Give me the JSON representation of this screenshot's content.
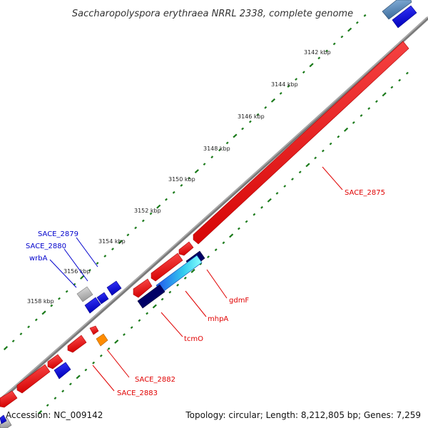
{
  "title": "Saccharopolyspora erythraea NRRL 2338, complete genome",
  "footer": {
    "accession": "Accession: NC_009142",
    "summary": "Topology: circular; Length: 8,212,805 bp; Genes: 7,259"
  },
  "ticks": [
    "3142 kbp",
    "3144 kbp",
    "3146 kbp",
    "3148 kbp",
    "3150 kbp",
    "3152 kbp",
    "3154 kbp",
    "3156 kbp",
    "3158 kbp"
  ],
  "gene_labels": [
    {
      "text": "SACE_2875",
      "color": "#e00000"
    },
    {
      "text": "gdmF",
      "color": "#e00000"
    },
    {
      "text": "mhpA",
      "color": "#e00000"
    },
    {
      "text": "tcmO",
      "color": "#e00000"
    },
    {
      "text": "SACE_2882",
      "color": "#e00000"
    },
    {
      "text": "SACE_2883",
      "color": "#e00000"
    },
    {
      "text": "SACE_2879",
      "color": "#0000cc"
    },
    {
      "text": "SACE_2880",
      "color": "#0000cc"
    },
    {
      "text": "wrbA",
      "color": "#0000cc"
    }
  ],
  "colors": {
    "forward_gene": "#ff0000",
    "reverse_gene": "#0000ee",
    "backbone": "#808080",
    "dots": "#1a7a1a",
    "navy_gene": "#000066",
    "cyan_gene": "#33dddd",
    "grey_gene": "#bbbbbb",
    "orange_gene": "#ff8c00"
  }
}
